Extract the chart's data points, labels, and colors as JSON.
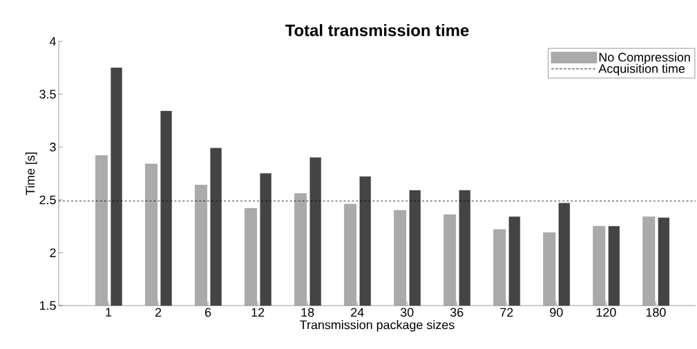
{
  "chart_data": {
    "type": "bar",
    "title": "Total transmission time",
    "xlabel": "Transmission package sizes",
    "ylabel": "Time [s]",
    "categories": [
      "1",
      "2",
      "6",
      "12",
      "18",
      "24",
      "30",
      "36",
      "72",
      "90",
      "120",
      "180"
    ],
    "series": [
      {
        "name": "No Compression",
        "color": "#aaaaaa",
        "values": [
          2.92,
          2.84,
          2.64,
          2.42,
          2.56,
          2.46,
          2.4,
          2.36,
          2.22,
          2.19,
          2.25,
          2.34
        ]
      },
      {
        "color": "#444444",
        "values": [
          3.75,
          3.34,
          2.99,
          2.75,
          2.9,
          2.72,
          2.59,
          2.59,
          2.34,
          2.47,
          2.25,
          2.33
        ]
      }
    ],
    "ylim": [
      1.5,
      4
    ],
    "yticks": [
      1.5,
      2,
      2.5,
      3,
      3.5,
      4
    ],
    "ref_lines": [
      {
        "axis": "y",
        "value": 2.49,
        "label": "Acquisition time",
        "line_style": "dashed",
        "color": "#000000"
      }
    ],
    "legend": "top right",
    "grid": false
  }
}
